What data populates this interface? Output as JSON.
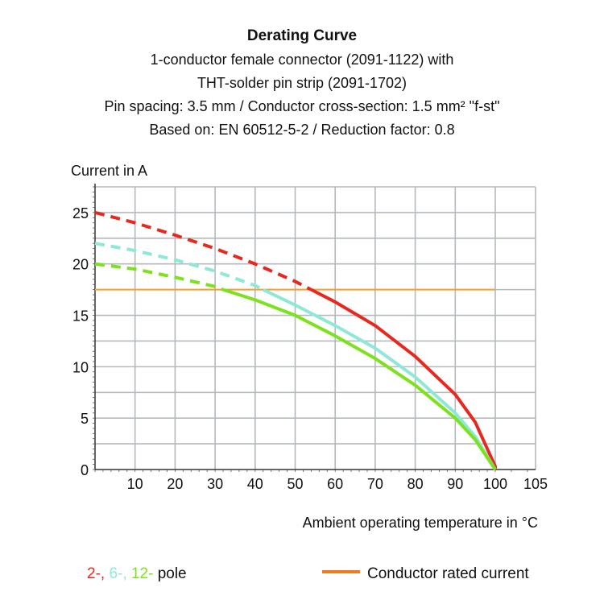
{
  "chart_data": {
    "type": "line",
    "title": "Derating Curve",
    "subtitle_lines": [
      "1-conductor female connector (2091-1122) with",
      "THT-solder pin strip (2091-1702)",
      "Pin spacing: 3.5 mm / Conductor cross-section: 1.5 mm² \"f-st\"",
      "Based on: EN 60512-5-2 / Reduction factor: 0.8"
    ],
    "ylabel": "Current in A",
    "xlabel": "Ambient operating temperature in °C",
    "xlim": [
      0,
      105
    ],
    "ylim": [
      0,
      27.5
    ],
    "x_ticks": [
      10,
      20,
      30,
      40,
      50,
      60,
      70,
      80,
      90,
      100,
      105
    ],
    "y_ticks": [
      0,
      5,
      10,
      15,
      20,
      25
    ],
    "grid": true,
    "series": [
      {
        "color": "#e8281e",
        "x": [
          0,
          10,
          20,
          30,
          40,
          50,
          54,
          60,
          70,
          80,
          90,
          95,
          100
        ],
        "y": [
          25,
          24,
          22.8,
          21.5,
          20,
          18.3,
          17.5,
          16.3,
          14,
          11,
          7.3,
          4.6,
          0.3
        ]
      },
      {
        "color": "#8ee8d8",
        "x": [
          0,
          10,
          20,
          30,
          40,
          42,
          50,
          60,
          70,
          80,
          90,
          95,
          100
        ],
        "y": [
          22,
          21.3,
          20.4,
          19.3,
          17.9,
          17.5,
          16,
          14,
          11.8,
          9,
          5.5,
          3.2,
          0
        ]
      },
      {
        "color": "#7de21e",
        "x": [
          0,
          10,
          20,
          30,
          32,
          40,
          50,
          60,
          70,
          80,
          90,
          95,
          100
        ],
        "y": [
          20,
          19.5,
          18.7,
          17.8,
          17.5,
          16.5,
          15,
          13,
          10.8,
          8.2,
          5,
          2.9,
          0
        ]
      }
    ],
    "dashed_above": 17.5,
    "rated_current": {
      "name": "Conductor rated current",
      "value": 17.5,
      "x": [
        0,
        100
      ],
      "color": "#f5a030",
      "legend_color": "#f07a1e"
    },
    "legend": {
      "poles": [
        {
          "text": "2-,",
          "color": "#e8281e"
        },
        {
          "text": "6-,",
          "color": "#8ee8d8"
        },
        {
          "text": "12-",
          "color": "#7de21e"
        }
      ],
      "pole_suffix": "pole",
      "placement": "bottom"
    }
  }
}
